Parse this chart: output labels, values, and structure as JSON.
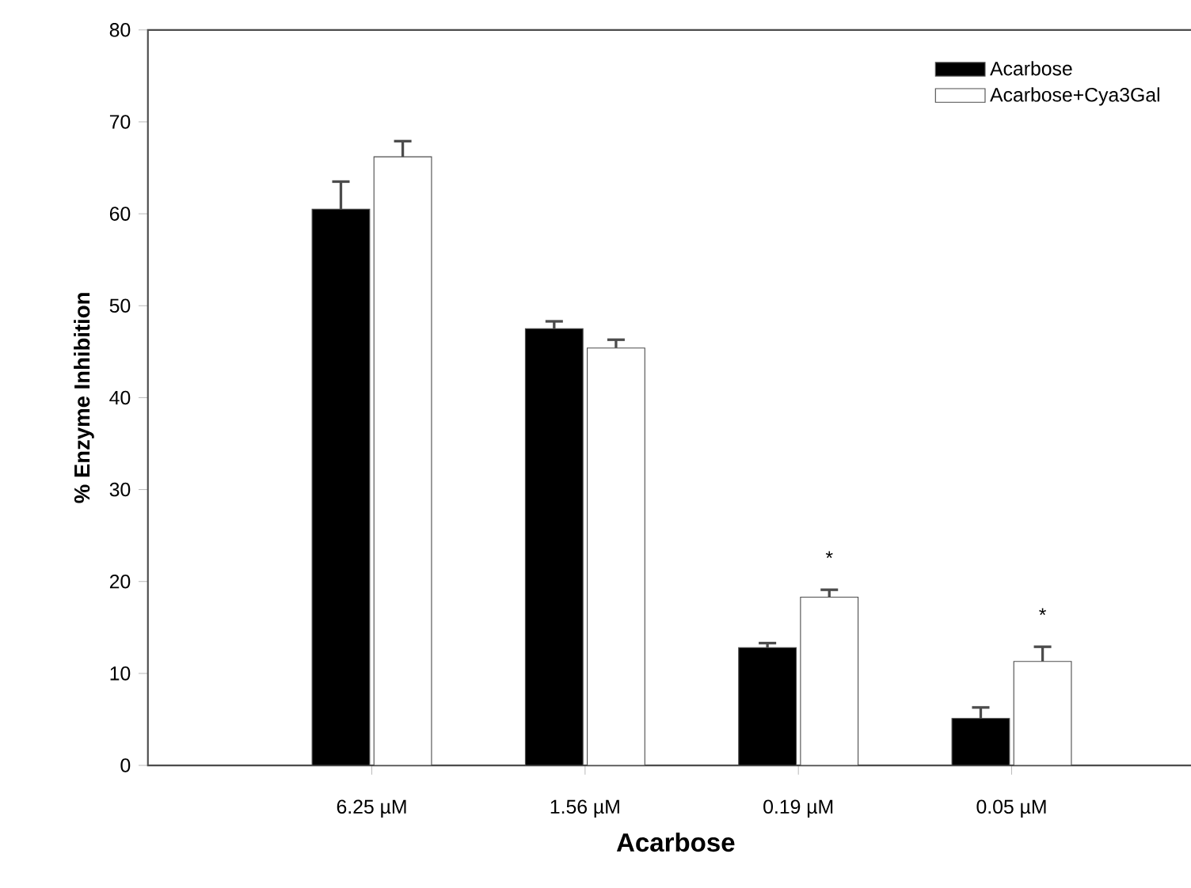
{
  "chart_data": {
    "type": "bar",
    "xlabel": "Acarbose",
    "ylabel": "% Enzyme Inhibition",
    "categories": [
      "6.25 µM",
      "1.56  µM",
      "0.19 µM",
      "0.05 µM"
    ],
    "series": [
      {
        "name": "Acarbose",
        "color": "#000000",
        "values": [
          60.5,
          47.5,
          12.8,
          5.1
        ],
        "errors": [
          3,
          0.8,
          0.5,
          1.2
        ]
      },
      {
        "name": "Acarbose+Cya3Gal",
        "color": "#ffffff",
        "values": [
          66.2,
          45.4,
          18.3,
          11.3
        ],
        "errors": [
          1.7,
          0.9,
          0.8,
          1.6
        ]
      }
    ],
    "annotations": [
      "*",
      "*"
    ],
    "ylim": [
      0,
      80
    ],
    "yticks": [
      0,
      10,
      20,
      30,
      40,
      50,
      60,
      70,
      80
    ],
    "legend": "top right",
    "grid": false
  }
}
